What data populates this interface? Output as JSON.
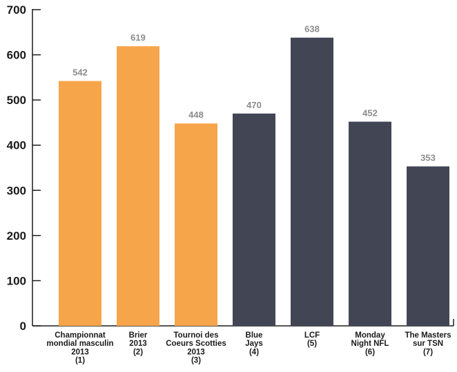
{
  "chart_data": {
    "type": "bar",
    "categories": [
      [
        "Championnat",
        "mondial masculin",
        "2013",
        "(1)"
      ],
      [
        "Brier",
        "2013",
        "(2)"
      ],
      [
        "Tournoi des",
        "Coeurs Scotties",
        "2013",
        "(3)"
      ],
      [
        "Blue",
        "Jays",
        "(4)"
      ],
      [
        "LCF",
        "(5)"
      ],
      [
        "Monday",
        "Night NFL",
        "(6)"
      ],
      [
        "The Masters",
        "sur TSN",
        "(7)"
      ]
    ],
    "values": [
      542,
      619,
      448,
      470,
      638,
      452,
      353
    ],
    "bar_colors": [
      "#f7a54a",
      "#f7a54a",
      "#f7a54a",
      "#424654",
      "#424654",
      "#424654",
      "#424654"
    ],
    "data_labels": [
      "542",
      "619",
      "448",
      "470",
      "638",
      "452",
      "353"
    ],
    "y_ticks": [
      "0",
      "100",
      "200",
      "300",
      "400",
      "500",
      "600",
      "700"
    ],
    "ylim": [
      0,
      700
    ],
    "grid": false,
    "legend": false,
    "title": "",
    "xlabel": "",
    "ylabel": ""
  }
}
